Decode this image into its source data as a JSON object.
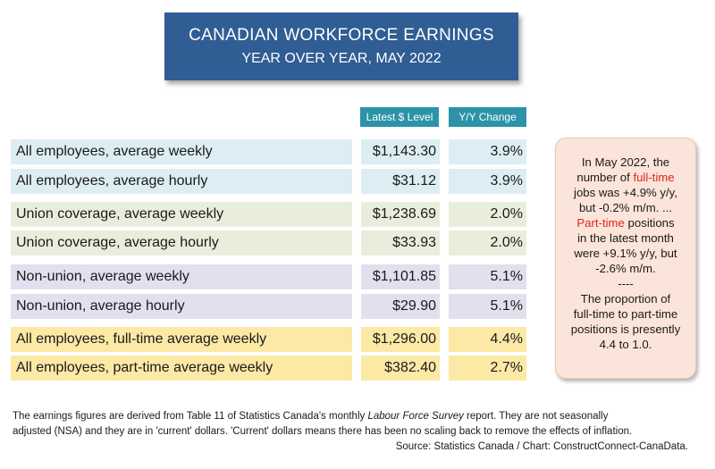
{
  "title": {
    "main": "CANADIAN WORKFORCE EARNINGS",
    "sub": "YEAR OVER YEAR, MAY 2022"
  },
  "chart_data": {
    "type": "table",
    "columns": [
      "Latest $ Level",
      "Y/Y Change"
    ],
    "rows": [
      {
        "label": "All employees, average weekly",
        "level": "$1,143.30",
        "change": "3.9%",
        "level_value": 1143.3,
        "change_pct": 3.9
      },
      {
        "label": "All employees, average hourly",
        "level": "$31.12",
        "change": "3.9%",
        "level_value": 31.12,
        "change_pct": 3.9
      },
      {
        "label": "Union coverage, average weekly",
        "level": "$1,238.69",
        "change": "2.0%",
        "level_value": 1238.69,
        "change_pct": 2.0
      },
      {
        "label": "Union coverage, average hourly",
        "level": "$33.93",
        "change": "2.0%",
        "level_value": 33.93,
        "change_pct": 2.0
      },
      {
        "label": "Non-union, average weekly",
        "level": "$1,101.85",
        "change": "5.1%",
        "level_value": 1101.85,
        "change_pct": 5.1
      },
      {
        "label": "Non-union, average hourly",
        "level": "$29.90",
        "change": "5.1%",
        "level_value": 29.9,
        "change_pct": 5.1
      },
      {
        "label": "All employees, full-time average weekly",
        "level": "$1,296.00",
        "change": "4.4%",
        "level_value": 1296.0,
        "change_pct": 4.4
      },
      {
        "label": "All employees, part-time average weekly",
        "level": "$382.40",
        "change": "2.7%",
        "level_value": 382.4,
        "change_pct": 2.7
      }
    ]
  },
  "note": {
    "l1": "In May 2022, the",
    "l2a": "number of ",
    "l2b": "full-time",
    "l3": "jobs was +4.9% y/y,",
    "l4": "but -0.2% m/m. ...",
    "l5a": "Part-time",
    "l5b": " positions",
    "l6": "in the latest month",
    "l7": "were +9.1% y/y, but",
    "l8": "-2.6% m/m.",
    "l9": "----",
    "l10": "The proportion of",
    "l11": "full-time to part-time",
    "l12": "positions is presently",
    "l13": "4.4 to 1.0."
  },
  "footer": {
    "p1a": "The earnings figures are derived from Table 11 of Statistics Canada's monthly ",
    "p1b": "Labour Force Survey",
    "p1c": " report. They are not seasonally",
    "p2": "adjusted (NSA) and they are in 'current' dollars. 'Current' dollars means there has been no scaling back to remove the effects of inflation.",
    "source": "Source: Statistics Canada / Chart: ConstructConnect-CanaData."
  },
  "colors": {
    "title_bg": "#2f5d94",
    "header_bg": "#2c93a8",
    "group_blue": "#dceef3",
    "group_green": "#e8eedb",
    "group_purple": "#e3dfee",
    "group_yellow": "#fbe9a5",
    "note_bg": "#fbe4d9",
    "highlight_red": "#e0241f"
  }
}
